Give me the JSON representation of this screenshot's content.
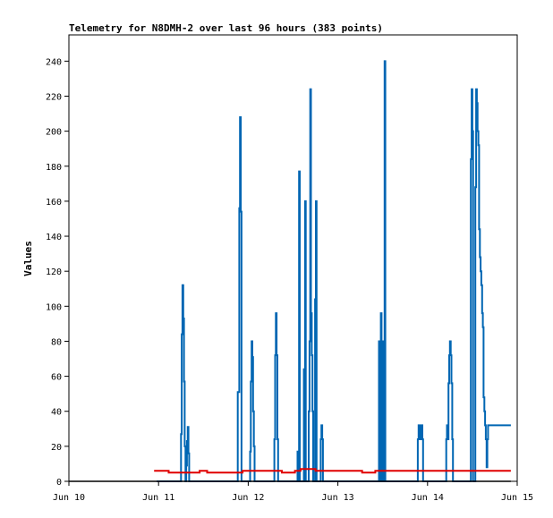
{
  "chart_data": {
    "type": "line",
    "title": "Telemetry for N8DMH-2 over last 96 hours (383 points)",
    "xlabel": "",
    "ylabel": "Values",
    "xlim": [
      0,
      120
    ],
    "ylim": [
      0,
      255
    ],
    "grid": false,
    "legend": "none",
    "x_axis_unit": "hours since Jun 10 00:00",
    "x_ticks": [
      {
        "x": 0,
        "label": "Jun 10"
      },
      {
        "x": 24,
        "label": "Jun 11"
      },
      {
        "x": 48,
        "label": "Jun 12"
      },
      {
        "x": 72,
        "label": "Jun 13"
      },
      {
        "x": 96,
        "label": "Jun 14"
      },
      {
        "x": 120,
        "label": "Jun 15"
      }
    ],
    "y_ticks": [
      0,
      20,
      40,
      60,
      80,
      100,
      120,
      140,
      160,
      180,
      200,
      220,
      240
    ],
    "series": [
      {
        "color": "#0066b3",
        "step": true,
        "points": [
          [
            23.5,
            0
          ],
          [
            30.0,
            0
          ],
          [
            30.0,
            27
          ],
          [
            30.2,
            27
          ],
          [
            30.2,
            84
          ],
          [
            30.4,
            84
          ],
          [
            30.4,
            112
          ],
          [
            30.6,
            112
          ],
          [
            30.6,
            93
          ],
          [
            30.8,
            93
          ],
          [
            30.8,
            57
          ],
          [
            31.0,
            57
          ],
          [
            31.0,
            20
          ],
          [
            31.2,
            20
          ],
          [
            31.2,
            0
          ],
          [
            31.4,
            0
          ],
          [
            31.4,
            9
          ],
          [
            31.6,
            9
          ],
          [
            31.6,
            23
          ],
          [
            31.8,
            23
          ],
          [
            31.8,
            31
          ],
          [
            32.0,
            31
          ],
          [
            32.0,
            16
          ],
          [
            32.2,
            16
          ],
          [
            32.2,
            0
          ],
          [
            45.2,
            0
          ],
          [
            45.2,
            51
          ],
          [
            45.6,
            51
          ],
          [
            45.6,
            156
          ],
          [
            45.8,
            156
          ],
          [
            45.8,
            208
          ],
          [
            46.0,
            208
          ],
          [
            46.0,
            154
          ],
          [
            46.2,
            154
          ],
          [
            46.2,
            0
          ],
          [
            48.5,
            0
          ],
          [
            48.5,
            17
          ],
          [
            48.7,
            17
          ],
          [
            48.7,
            57
          ],
          [
            48.9,
            57
          ],
          [
            48.9,
            80
          ],
          [
            49.1,
            80
          ],
          [
            49.1,
            71
          ],
          [
            49.3,
            71
          ],
          [
            49.3,
            40
          ],
          [
            49.5,
            40
          ],
          [
            49.5,
            20
          ],
          [
            49.7,
            20
          ],
          [
            49.7,
            0
          ],
          [
            55.0,
            0
          ],
          [
            55.0,
            24
          ],
          [
            55.2,
            24
          ],
          [
            55.2,
            72
          ],
          [
            55.4,
            72
          ],
          [
            55.4,
            96
          ],
          [
            55.6,
            96
          ],
          [
            55.6,
            72
          ],
          [
            55.8,
            72
          ],
          [
            55.8,
            24
          ],
          [
            56.0,
            24
          ],
          [
            56.0,
            0
          ],
          [
            61.2,
            0
          ],
          [
            61.2,
            17
          ],
          [
            61.4,
            17
          ],
          [
            61.4,
            0
          ],
          [
            61.6,
            0
          ],
          [
            61.6,
            177
          ],
          [
            61.8,
            177
          ],
          [
            61.8,
            0
          ],
          [
            62.9,
            0
          ],
          [
            62.9,
            64
          ],
          [
            63.1,
            64
          ],
          [
            63.1,
            0
          ],
          [
            63.2,
            0
          ],
          [
            63.2,
            160
          ],
          [
            63.4,
            160
          ],
          [
            63.4,
            0
          ],
          [
            64.2,
            0
          ],
          [
            64.2,
            40
          ],
          [
            64.4,
            40
          ],
          [
            64.4,
            80
          ],
          [
            64.6,
            80
          ],
          [
            64.6,
            224
          ],
          [
            64.8,
            224
          ],
          [
            64.8,
            96
          ],
          [
            65.0,
            96
          ],
          [
            65.0,
            72
          ],
          [
            65.2,
            72
          ],
          [
            65.2,
            40
          ],
          [
            65.4,
            40
          ],
          [
            65.4,
            0
          ],
          [
            65.9,
            0
          ],
          [
            65.9,
            104
          ],
          [
            66.1,
            104
          ],
          [
            66.1,
            160
          ],
          [
            66.3,
            160
          ],
          [
            66.3,
            0
          ],
          [
            67.4,
            0
          ],
          [
            67.4,
            24
          ],
          [
            67.6,
            24
          ],
          [
            67.6,
            32
          ],
          [
            67.8,
            32
          ],
          [
            67.8,
            24
          ],
          [
            68.0,
            24
          ],
          [
            68.0,
            0
          ],
          [
            83.0,
            0
          ],
          [
            83.0,
            80
          ],
          [
            83.2,
            80
          ],
          [
            83.2,
            0
          ],
          [
            83.5,
            0
          ],
          [
            83.5,
            96
          ],
          [
            83.7,
            96
          ],
          [
            83.7,
            0
          ],
          [
            84.0,
            0
          ],
          [
            84.0,
            80
          ],
          [
            84.2,
            80
          ],
          [
            84.2,
            0
          ],
          [
            84.5,
            0
          ],
          [
            84.5,
            240
          ],
          [
            84.7,
            240
          ],
          [
            84.7,
            0
          ],
          [
            93.4,
            0
          ],
          [
            93.4,
            24
          ],
          [
            93.6,
            24
          ],
          [
            93.6,
            32
          ],
          [
            93.8,
            32
          ],
          [
            93.8,
            24
          ],
          [
            94.0,
            24
          ],
          [
            94.0,
            32
          ],
          [
            94.2,
            32
          ],
          [
            94.2,
            24
          ],
          [
            94.4,
            24
          ],
          [
            94.4,
            32
          ],
          [
            94.6,
            32
          ],
          [
            94.6,
            24
          ],
          [
            94.8,
            24
          ],
          [
            94.8,
            0
          ],
          [
            101.0,
            0
          ],
          [
            101.0,
            24
          ],
          [
            101.2,
            24
          ],
          [
            101.2,
            32
          ],
          [
            101.4,
            32
          ],
          [
            101.4,
            24
          ],
          [
            101.6,
            24
          ],
          [
            101.6,
            56
          ],
          [
            101.8,
            56
          ],
          [
            101.8,
            72
          ],
          [
            102.0,
            72
          ],
          [
            102.0,
            80
          ],
          [
            102.2,
            80
          ],
          [
            102.2,
            72
          ],
          [
            102.4,
            72
          ],
          [
            102.4,
            56
          ],
          [
            102.6,
            56
          ],
          [
            102.6,
            24
          ],
          [
            102.8,
            24
          ],
          [
            102.8,
            0
          ],
          [
            107.6,
            0
          ],
          [
            107.6,
            184
          ],
          [
            107.8,
            184
          ],
          [
            107.8,
            224
          ],
          [
            108.0,
            224
          ],
          [
            108.0,
            200
          ],
          [
            108.2,
            200
          ],
          [
            108.2,
            0
          ],
          [
            108.8,
            0
          ],
          [
            108.8,
            168
          ],
          [
            109.0,
            168
          ],
          [
            109.0,
            224
          ],
          [
            109.2,
            224
          ],
          [
            109.2,
            216
          ],
          [
            109.4,
            216
          ],
          [
            109.4,
            200
          ],
          [
            109.6,
            200
          ],
          [
            109.6,
            192
          ],
          [
            109.8,
            192
          ],
          [
            109.8,
            144
          ],
          [
            110.0,
            144
          ],
          [
            110.0,
            128
          ],
          [
            110.2,
            128
          ],
          [
            110.2,
            120
          ],
          [
            110.4,
            120
          ],
          [
            110.4,
            112
          ],
          [
            110.6,
            112
          ],
          [
            110.6,
            96
          ],
          [
            110.8,
            96
          ],
          [
            110.8,
            88
          ],
          [
            111.0,
            88
          ],
          [
            111.0,
            48
          ],
          [
            111.2,
            48
          ],
          [
            111.2,
            40
          ],
          [
            111.4,
            40
          ],
          [
            111.4,
            32
          ],
          [
            111.6,
            32
          ],
          [
            111.6,
            24
          ],
          [
            111.8,
            24
          ],
          [
            111.8,
            8
          ],
          [
            112.0,
            8
          ],
          [
            112.0,
            24
          ],
          [
            112.2,
            24
          ],
          [
            112.2,
            32
          ],
          [
            112.4,
            32
          ],
          [
            112.4,
            32
          ],
          [
            118.3,
            32
          ]
        ]
      },
      {
        "color": "#e00000",
        "step": true,
        "points": [
          [
            22.8,
            6
          ],
          [
            26.7,
            6
          ],
          [
            26.7,
            5
          ],
          [
            35.0,
            5
          ],
          [
            35.0,
            6
          ],
          [
            37.0,
            6
          ],
          [
            37.0,
            5
          ],
          [
            46.5,
            5
          ],
          [
            46.5,
            6
          ],
          [
            57.0,
            6
          ],
          [
            57.0,
            5
          ],
          [
            60.5,
            5
          ],
          [
            60.5,
            6
          ],
          [
            62.0,
            6
          ],
          [
            62.0,
            7
          ],
          [
            66.0,
            7
          ],
          [
            66.0,
            6
          ],
          [
            78.5,
            6
          ],
          [
            78.5,
            5
          ],
          [
            82.0,
            5
          ],
          [
            82.0,
            6
          ],
          [
            118.3,
            6
          ]
        ]
      },
      {
        "color": "#000000",
        "step": true,
        "points": [
          [
            0,
            0
          ],
          [
            118.3,
            0
          ]
        ]
      }
    ]
  }
}
